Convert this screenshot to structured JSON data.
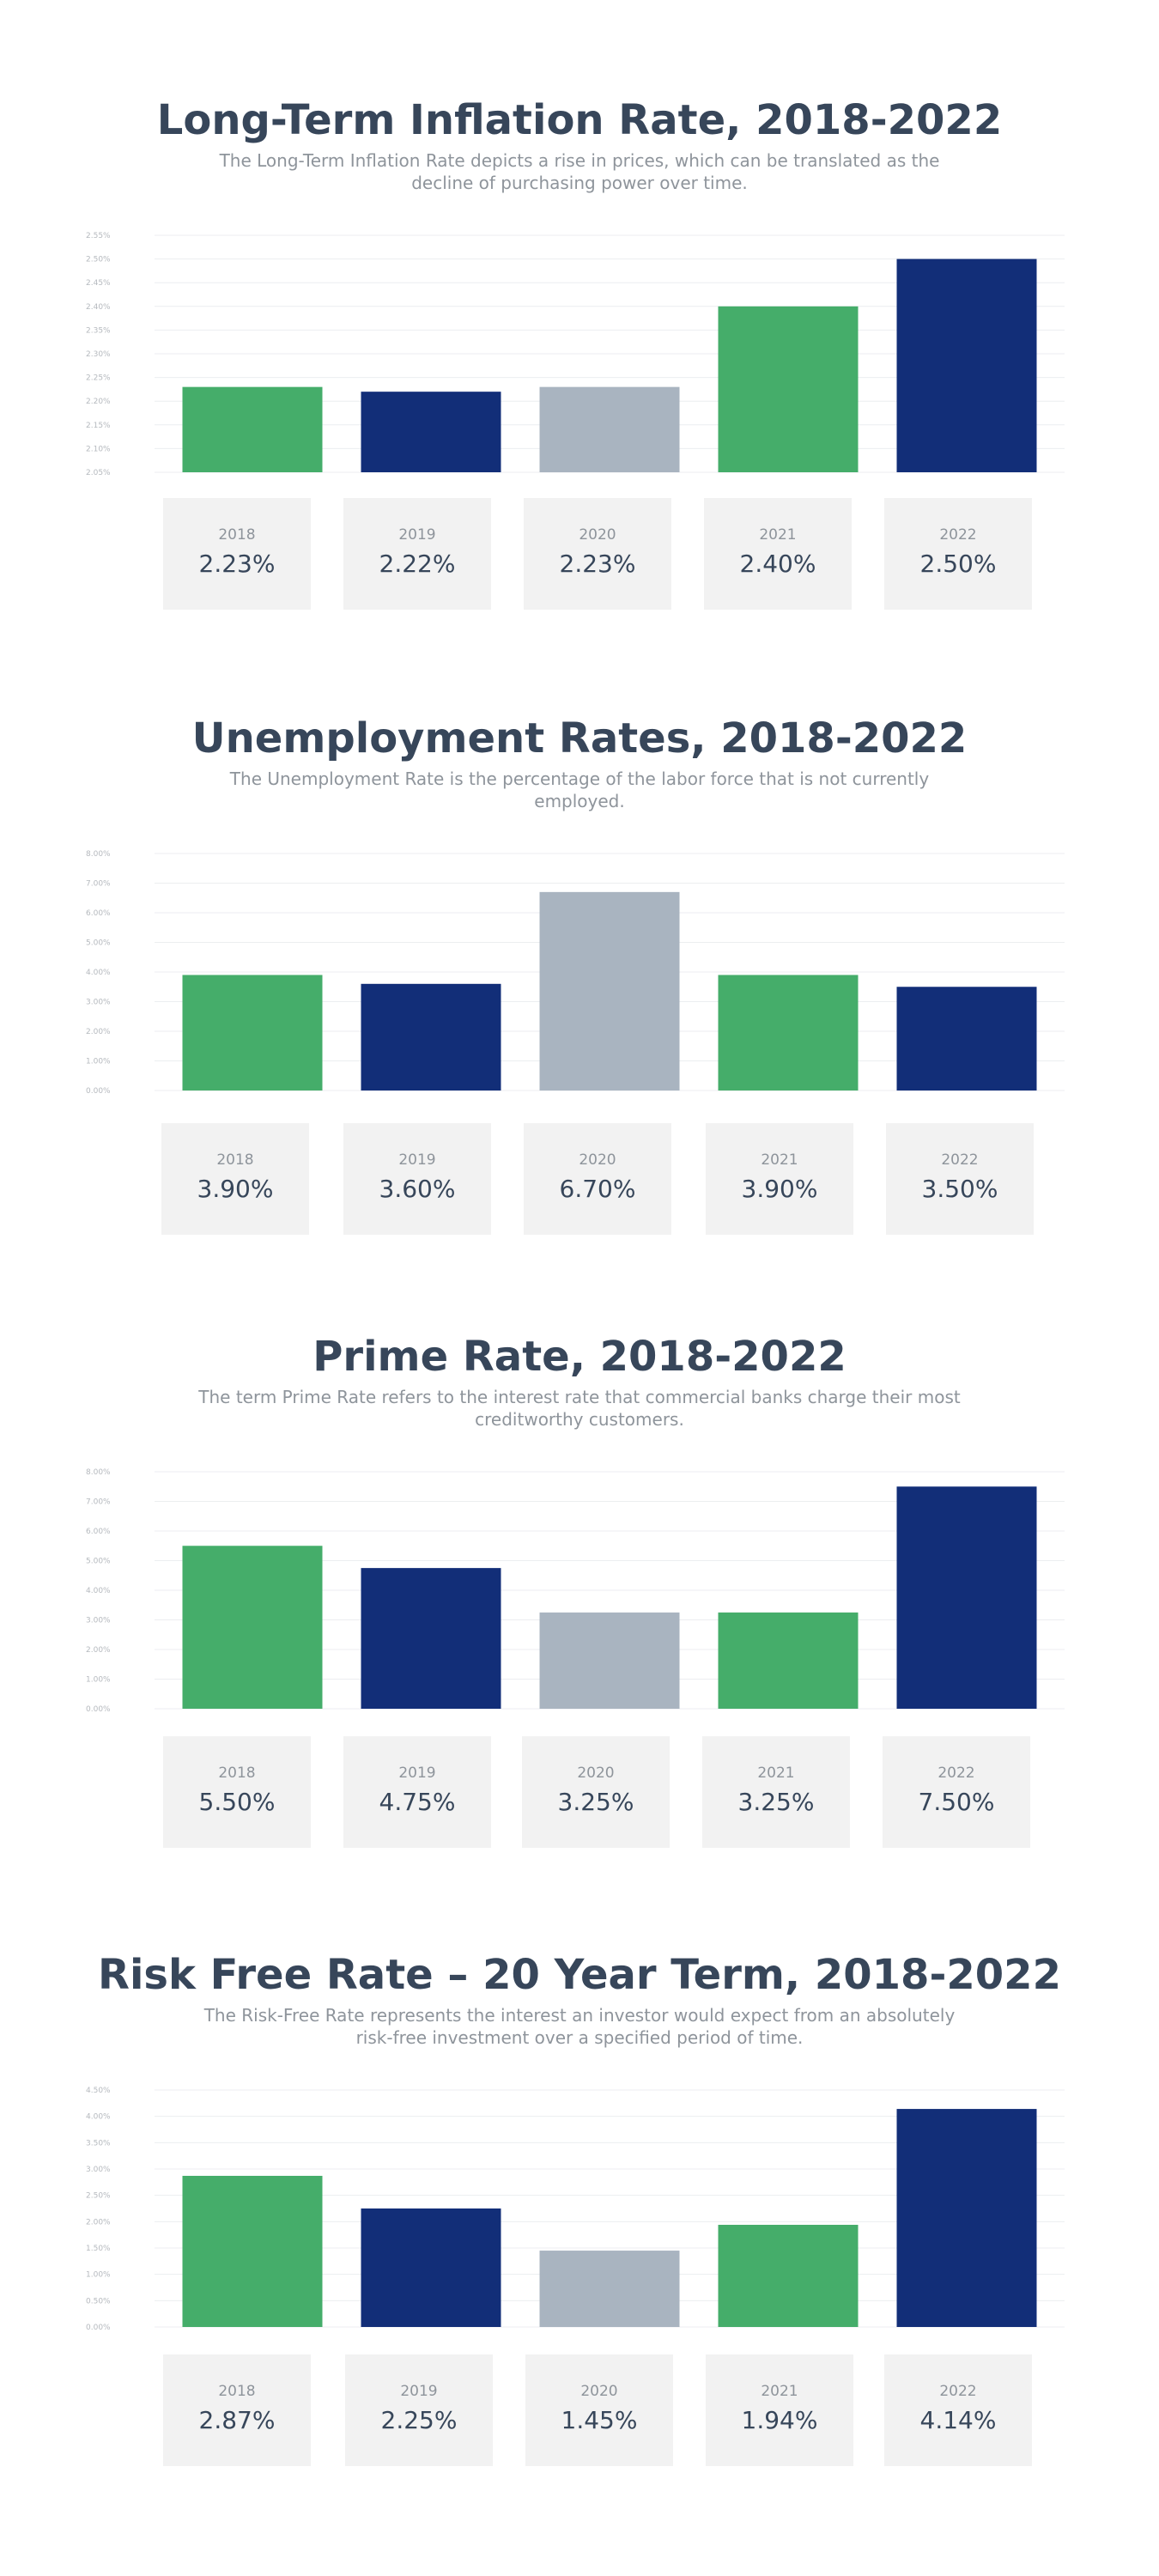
{
  "colors": {
    "green": "#45ad6a",
    "navy": "#122e78",
    "gray": "#a9b4c0",
    "title": "#37465a",
    "subtitle": "#8e949b",
    "card_bg": "#f2f2f2"
  },
  "chart_data": [
    {
      "type": "bar",
      "title": "Long-Term Inflation Rate, 2018-2022",
      "subtitle": "The Long-Term Inflation Rate depicts a rise in prices, which can be translated as the decline of purchasing power over time.",
      "categories": [
        "2018",
        "2019",
        "2020",
        "2021",
        "2022"
      ],
      "values": [
        2.23,
        2.22,
        2.23,
        2.4,
        2.5
      ],
      "value_labels": [
        "2.23%",
        "2.22%",
        "2.23%",
        "2.40%",
        "2.50%"
      ],
      "bar_colors": [
        "green",
        "navy",
        "gray",
        "green",
        "navy"
      ],
      "ylim": [
        2.05,
        2.55
      ],
      "yticks": [
        2.05,
        2.1,
        2.15,
        2.2,
        2.25,
        2.3,
        2.35,
        2.4,
        2.45,
        2.5,
        2.55
      ],
      "ytick_labels": [
        "2.05%",
        "2.10%",
        "2.15%",
        "2.20%",
        "2.25%",
        "2.30%",
        "2.35%",
        "2.40%",
        "2.45%",
        "2.50%",
        "2.55%"
      ],
      "grid": true,
      "xlabel": "",
      "ylabel": ""
    },
    {
      "type": "bar",
      "title": "Unemployment Rates, 2018-2022",
      "subtitle": "The Unemployment Rate is the percentage of the labor force that is not currently employed.",
      "categories": [
        "2018",
        "2019",
        "2020",
        "2021",
        "2022"
      ],
      "values": [
        3.9,
        3.6,
        6.7,
        3.9,
        3.5
      ],
      "value_labels": [
        "3.90%",
        "3.60%",
        "6.70%",
        "3.90%",
        "3.50%"
      ],
      "bar_colors": [
        "green",
        "navy",
        "gray",
        "green",
        "navy"
      ],
      "ylim": [
        0,
        8
      ],
      "yticks": [
        0,
        1,
        2,
        3,
        4,
        5,
        6,
        7,
        8
      ],
      "ytick_labels": [
        "0.00%",
        "1.00%",
        "2.00%",
        "3.00%",
        "4.00%",
        "5.00%",
        "6.00%",
        "7.00%",
        "8.00%"
      ],
      "grid": true,
      "xlabel": "",
      "ylabel": ""
    },
    {
      "type": "bar",
      "title": "Prime Rate, 2018-2022",
      "subtitle": "The term Prime Rate refers to the interest rate that commercial banks charge their most creditworthy customers.",
      "categories": [
        "2018",
        "2019",
        "2020",
        "2021",
        "2022"
      ],
      "values": [
        5.5,
        4.75,
        3.25,
        3.25,
        7.5
      ],
      "value_labels": [
        "5.50%",
        "4.75%",
        "3.25%",
        "3.25%",
        "7.50%"
      ],
      "bar_colors": [
        "green",
        "navy",
        "gray",
        "green",
        "navy"
      ],
      "ylim": [
        0,
        8
      ],
      "yticks": [
        0,
        1,
        2,
        3,
        4,
        5,
        6,
        7,
        8
      ],
      "ytick_labels": [
        "0.00%",
        "1.00%",
        "2.00%",
        "3.00%",
        "4.00%",
        "5.00%",
        "6.00%",
        "7.00%",
        "8.00%"
      ],
      "grid": true,
      "xlabel": "",
      "ylabel": ""
    },
    {
      "type": "bar",
      "title": "Risk Free Rate – 20 Year Term, 2018-2022",
      "subtitle": "The Risk-Free Rate represents the interest an investor would expect from an absolutely risk-free investment over a specified period of time.",
      "categories": [
        "2018",
        "2019",
        "2020",
        "2021",
        "2022"
      ],
      "values": [
        2.87,
        2.25,
        1.45,
        1.94,
        4.14
      ],
      "value_labels": [
        "2.87%",
        "2.25%",
        "1.45%",
        "1.94%",
        "4.14%"
      ],
      "bar_colors": [
        "green",
        "navy",
        "gray",
        "green",
        "navy"
      ],
      "ylim": [
        0,
        4.5
      ],
      "yticks": [
        0,
        0.5,
        1.0,
        1.5,
        2.0,
        2.5,
        3.0,
        3.5,
        4.0,
        4.5
      ],
      "ytick_labels": [
        "0.00%",
        "0.50%",
        "1.00%",
        "1.50%",
        "2.00%",
        "2.50%",
        "3.00%",
        "3.50%",
        "4.00%",
        "4.50%"
      ],
      "grid": true,
      "xlabel": "",
      "ylabel": ""
    }
  ]
}
